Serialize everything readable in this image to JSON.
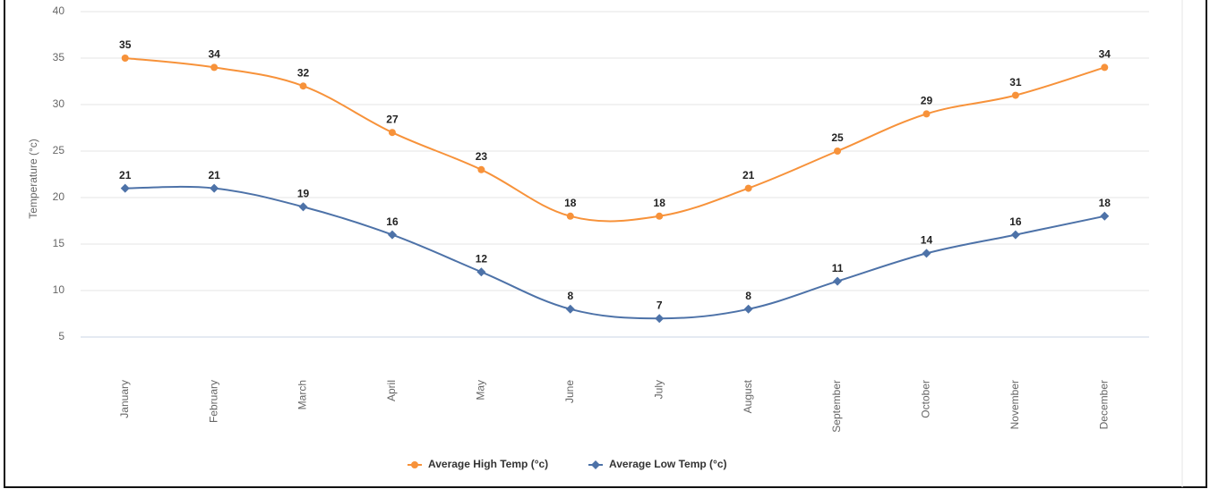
{
  "chart_data": {
    "type": "line",
    "y_label": "Temperature (°c)",
    "categories": [
      "January",
      "February",
      "March",
      "April",
      "May",
      "June",
      "July",
      "August",
      "September",
      "October",
      "November",
      "December"
    ],
    "series": [
      {
        "name": "Average High Temp (°c)",
        "color": "#f7923a",
        "marker": "circle",
        "values": [
          35,
          34,
          32,
          27,
          23,
          18,
          18,
          21,
          25,
          29,
          31,
          34
        ]
      },
      {
        "name": "Average Low Temp (°c)",
        "color": "#4d72a8",
        "marker": "diamond",
        "values": [
          21,
          21,
          19,
          16,
          12,
          8,
          7,
          8,
          11,
          14,
          16,
          18
        ]
      }
    ],
    "ylim": [
      5,
      40
    ],
    "yticks": [
      5,
      10,
      15,
      20,
      25,
      30,
      35,
      40
    ],
    "grid": true,
    "legend": "bottom"
  }
}
